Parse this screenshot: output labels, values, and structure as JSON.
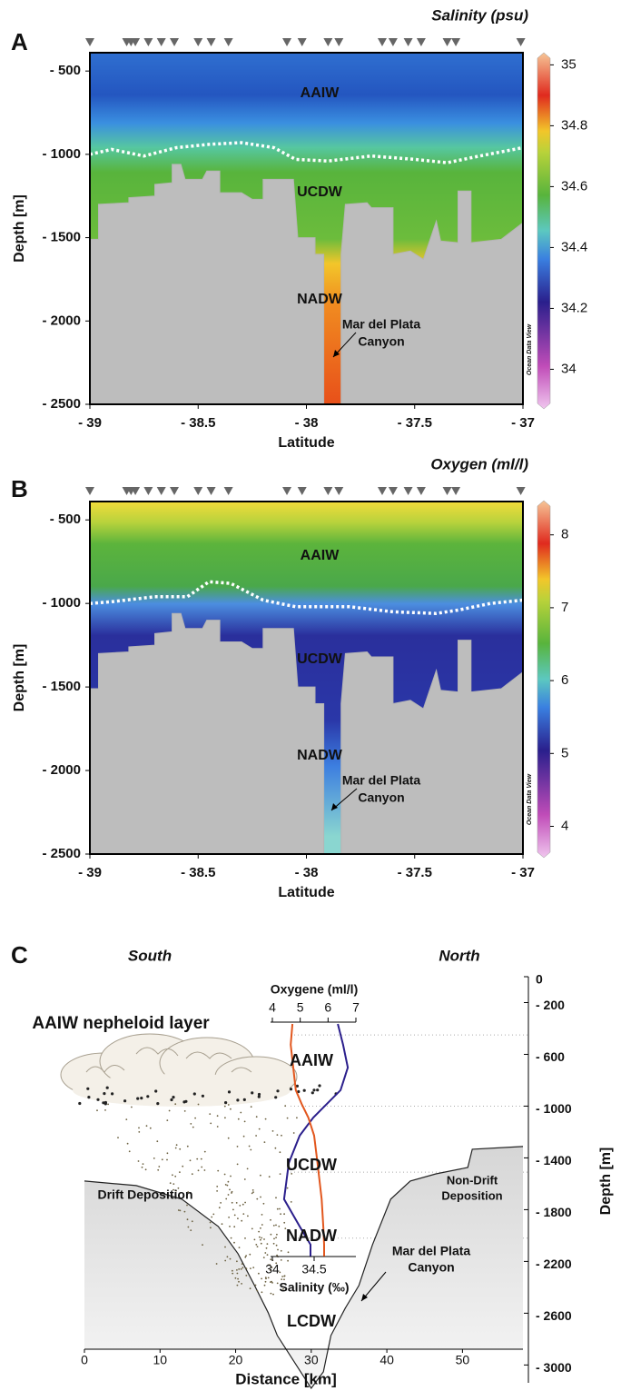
{
  "chart_data": [
    {
      "type": "section",
      "panel": "A",
      "title": "Salinity (psu)",
      "xlabel": "Latitude",
      "ylabel": "Depth [m]",
      "xlim": [
        -39,
        -37
      ],
      "xticks": [
        {
          "value": -39,
          "label": "- 39"
        },
        {
          "value": -38.5,
          "label": "- 38.5"
        },
        {
          "value": -38,
          "label": "- 38"
        },
        {
          "value": -37.5,
          "label": "- 37.5"
        },
        {
          "value": -37,
          "label": "- 37"
        }
      ],
      "ylim": [
        -390,
        -2500
      ],
      "yticks": [
        {
          "value": -500,
          "label": "- 500"
        },
        {
          "value": -1000,
          "label": "- 1000"
        },
        {
          "value": -1500,
          "label": "- 1500"
        },
        {
          "value": -2000,
          "label": "- 2000"
        },
        {
          "value": -2500,
          "label": "- 2500"
        }
      ],
      "clim": [
        33.87,
        35.04
      ],
      "cticks": [
        34,
        34.2,
        34.4,
        34.6,
        34.8,
        35
      ],
      "stations": [
        -39,
        -38.83,
        -38.81,
        -38.79,
        -38.73,
        -38.67,
        -38.61,
        -38.5,
        -38.44,
        -38.36,
        -38.09,
        -38.02,
        -37.9,
        -37.85,
        -37.65,
        -37.6,
        -37.53,
        -37.47,
        -37.35,
        -37.31,
        -37.01
      ],
      "seafloor": {
        "x": [
          -39,
          -38.96,
          -38.96,
          -38.82,
          -38.82,
          -38.7,
          -38.7,
          -38.62,
          -38.62,
          -38.58,
          -38.56,
          -38.48,
          -38.46,
          -38.4,
          -38.4,
          -38.3,
          -38.25,
          -38.2,
          -38.2,
          -38.06,
          -38.04,
          -37.96,
          -37.96,
          -37.92,
          -37.92,
          -37.84,
          -37.84,
          -37.82,
          -37.72,
          -37.7,
          -37.6,
          -37.6,
          -37.52,
          -37.46,
          -37.4,
          -37.38,
          -37.3,
          -37.3,
          -37.24,
          -37.24,
          -37.1,
          -37
        ],
        "y": [
          -1510,
          -1510,
          -1300,
          -1290,
          -1260,
          -1250,
          -1180,
          -1170,
          -1060,
          -1060,
          -1150,
          -1150,
          -1100,
          -1100,
          -1230,
          -1230,
          -1270,
          -1270,
          -1150,
          -1150,
          -1500,
          -1500,
          -1600,
          -1600,
          -2500,
          -2500,
          -1600,
          -1300,
          -1290,
          -1320,
          -1320,
          -1600,
          -1580,
          -1630,
          -1400,
          -1520,
          -1530,
          -1220,
          -1220,
          -1530,
          -1510,
          -1410
        ]
      },
      "isoline": {
        "x": [
          -39,
          -38.9,
          -38.75,
          -38.6,
          -38.45,
          -38.3,
          -38.15,
          -38.05,
          -37.9,
          -37.7,
          -37.5,
          -37.35,
          -37.2,
          -37
        ],
        "y": [
          -1000,
          -970,
          -1010,
          -960,
          -940,
          -930,
          -960,
          -1030,
          -1040,
          -1010,
          -1030,
          -1050,
          -1010,
          -960
        ]
      },
      "annotations": {
        "upper": "AAIW",
        "middle": "UCDW",
        "lower": "NADW",
        "canyon": [
          "Mar del Plata",
          "Canyon"
        ]
      },
      "credit": "Ocean Data View"
    },
    {
      "type": "section",
      "panel": "B",
      "title": "Oxygen (ml/l)",
      "xlabel": "Latitude",
      "ylabel": "Depth [m]",
      "xlim": [
        -39,
        -37
      ],
      "xticks": [
        {
          "value": -39,
          "label": "- 39"
        },
        {
          "value": -38.5,
          "label": "- 38.5"
        },
        {
          "value": -38,
          "label": "- 38"
        },
        {
          "value": -37.5,
          "label": "- 37.5"
        },
        {
          "value": -37,
          "label": "- 37"
        }
      ],
      "ylim": [
        -390,
        -2500
      ],
      "yticks": [
        {
          "value": -500,
          "label": "- 500"
        },
        {
          "value": -1000,
          "label": "- 1000"
        },
        {
          "value": -1500,
          "label": "- 1500"
        },
        {
          "value": -2000,
          "label": "- 2000"
        },
        {
          "value": -2500,
          "label": "- 2500"
        }
      ],
      "clim": [
        3.57,
        8.47
      ],
      "cticks": [
        4,
        5,
        6,
        7,
        8
      ],
      "stations": [
        -39,
        -38.83,
        -38.81,
        -38.79,
        -38.73,
        -38.67,
        -38.61,
        -38.5,
        -38.44,
        -38.36,
        -38.09,
        -38.02,
        -37.9,
        -37.85,
        -37.65,
        -37.6,
        -37.53,
        -37.47,
        -37.35,
        -37.31,
        -37.01
      ],
      "seafloor": {
        "x": [
          -39,
          -38.96,
          -38.96,
          -38.82,
          -38.82,
          -38.7,
          -38.7,
          -38.62,
          -38.62,
          -38.58,
          -38.56,
          -38.48,
          -38.46,
          -38.4,
          -38.4,
          -38.3,
          -38.25,
          -38.2,
          -38.2,
          -38.06,
          -38.04,
          -37.96,
          -37.96,
          -37.92,
          -37.92,
          -37.84,
          -37.84,
          -37.82,
          -37.72,
          -37.7,
          -37.6,
          -37.6,
          -37.52,
          -37.46,
          -37.4,
          -37.38,
          -37.3,
          -37.3,
          -37.24,
          -37.24,
          -37.1,
          -37
        ],
        "y": [
          -1510,
          -1510,
          -1300,
          -1290,
          -1260,
          -1250,
          -1180,
          -1170,
          -1060,
          -1060,
          -1150,
          -1150,
          -1100,
          -1100,
          -1230,
          -1230,
          -1270,
          -1270,
          -1150,
          -1150,
          -1500,
          -1500,
          -1600,
          -1600,
          -2500,
          -2500,
          -1600,
          -1300,
          -1290,
          -1320,
          -1320,
          -1600,
          -1580,
          -1630,
          -1400,
          -1520,
          -1530,
          -1220,
          -1220,
          -1530,
          -1510,
          -1410
        ]
      },
      "isoline": {
        "x": [
          -39,
          -38.9,
          -38.7,
          -38.55,
          -38.45,
          -38.35,
          -38.2,
          -38.05,
          -37.8,
          -37.6,
          -37.4,
          -37.3,
          -37.15,
          -37
        ],
        "y": [
          -1000,
          -990,
          -960,
          -960,
          -870,
          -880,
          -980,
          -1020,
          -1020,
          -1050,
          -1060,
          -1040,
          -1000,
          -980
        ]
      },
      "annotations": {
        "upper": "AAIW",
        "middle": "UCDW",
        "lower": "NADW",
        "canyon": [
          "Mar del Plata",
          "Canyon"
        ]
      },
      "credit": "Ocean Data View"
    },
    {
      "type": "profile",
      "panel": "C",
      "xlabel": "Distance [km]",
      "ylabel": "Depth [m]",
      "xlim": [
        0,
        58
      ],
      "xticks": [
        0,
        10,
        20,
        30,
        40,
        50
      ],
      "ylim": [
        0,
        -3180
      ],
      "yticks": [
        0,
        {
          "value": -200,
          "label": "- 200"
        },
        {
          "value": -600,
          "label": "- 600"
        },
        {
          "value": -1000,
          "label": "- 1000"
        },
        {
          "value": -1400,
          "label": "- 1400"
        },
        {
          "value": -1800,
          "label": "- 1800"
        },
        {
          "value": -2200,
          "label": "- 2200"
        },
        {
          "value": -2600,
          "label": "- 2600"
        },
        {
          "value": -3000,
          "label": "- 3000"
        }
      ],
      "top_axis": {
        "label": "Oxygene (ml/l)",
        "lim": [
          4,
          7
        ],
        "ticks": [
          4,
          5,
          6,
          7
        ],
        "color": "#2b1f8c"
      },
      "bottom_axis": {
        "label": "Salinity (‰)",
        "lim": [
          34,
          35
        ],
        "ticks": [
          34,
          34.5
        ],
        "color": "#e2571e"
      },
      "series": [
        {
          "axis": "top",
          "color": "#2b1f8c",
          "depth": [
            -365,
            -526,
            -702,
            -877,
            -982,
            -1088,
            -1228,
            -1439,
            -1719,
            -1930,
            -2070,
            -2161
          ],
          "values": [
            6.35,
            6.54,
            6.71,
            6.45,
            5.96,
            5.47,
            4.98,
            4.59,
            4.42,
            4.98,
            5.37,
            5.37
          ]
        },
        {
          "axis": "bottom",
          "color": "#e2571e",
          "depth": [
            -365,
            -526,
            -702,
            -877,
            -982,
            -1088,
            -1228,
            -1439,
            -1719,
            -1930,
            -2070,
            -2161
          ],
          "values": [
            34.24,
            34.22,
            34.25,
            34.28,
            34.35,
            34.43,
            34.5,
            34.54,
            34.59,
            34.61,
            34.62,
            34.62
          ]
        }
      ],
      "layer_boundaries": [
        -450,
        -1000,
        -1510,
        -2020
      ],
      "seafloor": {
        "x": [
          0,
          6.85,
          12.9,
          17.7,
          20.3,
          22.5,
          24.3,
          25.5,
          30,
          31.6,
          32.6,
          34.5,
          36.3,
          38.1,
          40.5,
          43.1,
          46.5,
          50.7,
          51.3,
          58
        ],
        "y": [
          -1579,
          -1614,
          -1719,
          -1930,
          -2140,
          -2386,
          -2596,
          -2772,
          -3180,
          -3053,
          -2772,
          -2561,
          -2386,
          -2070,
          -1719,
          -1579,
          -1523,
          -1474,
          -1333,
          -1312
        ]
      },
      "annotations": {
        "south": "South",
        "north": "North",
        "nepheloid": "AAIW nepheloid layer",
        "aaiw": "AAIW",
        "ucdw": "UCDW",
        "nadw": "NADW",
        "lcdw": "LCDW",
        "drift": "Drift Deposition",
        "nondrift": [
          "Non-Drift",
          "Deposition"
        ],
        "canyon": [
          "Mar del Plata",
          "Canyon"
        ]
      }
    }
  ]
}
